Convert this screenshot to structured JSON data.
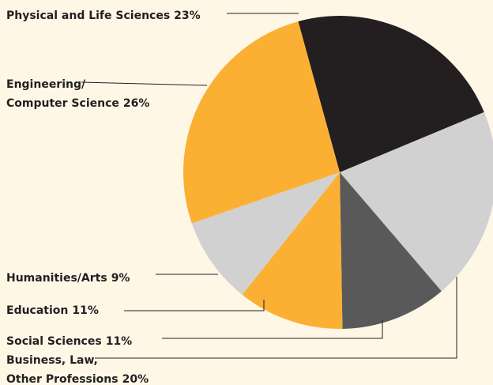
{
  "chart_data": {
    "type": "pie",
    "categories": [
      [
        "Physical and Life Sciences"
      ],
      [
        "Business, Law,",
        "Other Professions"
      ],
      [
        "Social Sciences"
      ],
      [
        "Education"
      ],
      [
        "Humanities/Arts"
      ],
      [
        "Engineering/",
        "Computer Science"
      ]
    ],
    "values": [
      23,
      20,
      11,
      11,
      9,
      26
    ],
    "value_labels": [
      "23%",
      "20%",
      "11%",
      "11%",
      "9%",
      "26%"
    ],
    "colors": [
      "#231f20",
      "#d1d1d1",
      "#595959",
      "#fbb034",
      "#d1d1d1",
      "#fbb034"
    ]
  }
}
